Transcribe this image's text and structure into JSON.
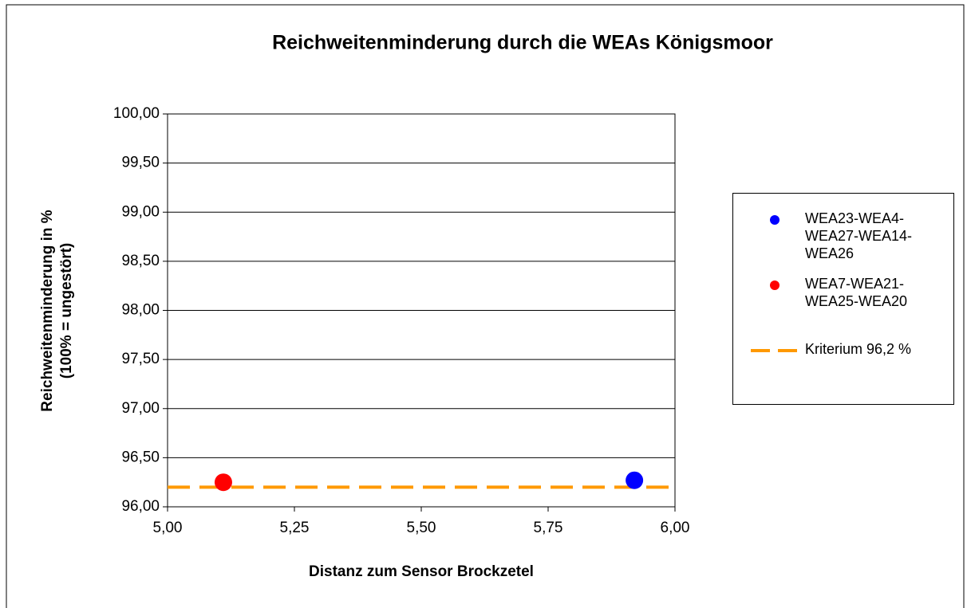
{
  "chart_data": {
    "type": "scatter",
    "title": "Reichweitenminderung durch die WEAs Königsmoor",
    "xlabel": "Distanz zum Sensor Brockzetel",
    "ylabel": [
      "Reichweitenminderung  in %",
      "(100% = ungestört)"
    ],
    "xlim": [
      5,
      6
    ],
    "xticks": [
      {
        "value": 5,
        "label": "5,00"
      },
      {
        "value": 5.25,
        "label": "5,25"
      },
      {
        "value": 5.5,
        "label": "5,50"
      },
      {
        "value": 5.75,
        "label": "5,75"
      },
      {
        "value": 6,
        "label": "6,00"
      }
    ],
    "ylim": [
      96,
      100
    ],
    "yticks": [
      {
        "value": 96,
        "label": "96,00"
      },
      {
        "value": 96.5,
        "label": "96,50"
      },
      {
        "value": 97,
        "label": "97,00"
      },
      {
        "value": 97.5,
        "label": "97,50"
      },
      {
        "value": 98,
        "label": "98,00"
      },
      {
        "value": 98.5,
        "label": "98,50"
      },
      {
        "value": 99,
        "label": "99,00"
      },
      {
        "value": 99.5,
        "label": "99,50"
      },
      {
        "value": 100,
        "label": "100,00"
      }
    ],
    "grid": true,
    "legend": "right",
    "series": [
      {
        "name": "WEA23-WEA4-WEA27-WEA14-WEA26",
        "color": "#0000ff",
        "x": [
          5.92
        ],
        "y": [
          96.27
        ]
      },
      {
        "name": "WEA7-WEA21-WEA25-WEA20",
        "color": "#ff0000",
        "x": [
          5.11
        ],
        "y": [
          96.25
        ]
      }
    ],
    "lines": [
      {
        "name": "Kriterium 96,2 %",
        "color": "#ff9900",
        "y": 96.2
      }
    ]
  }
}
